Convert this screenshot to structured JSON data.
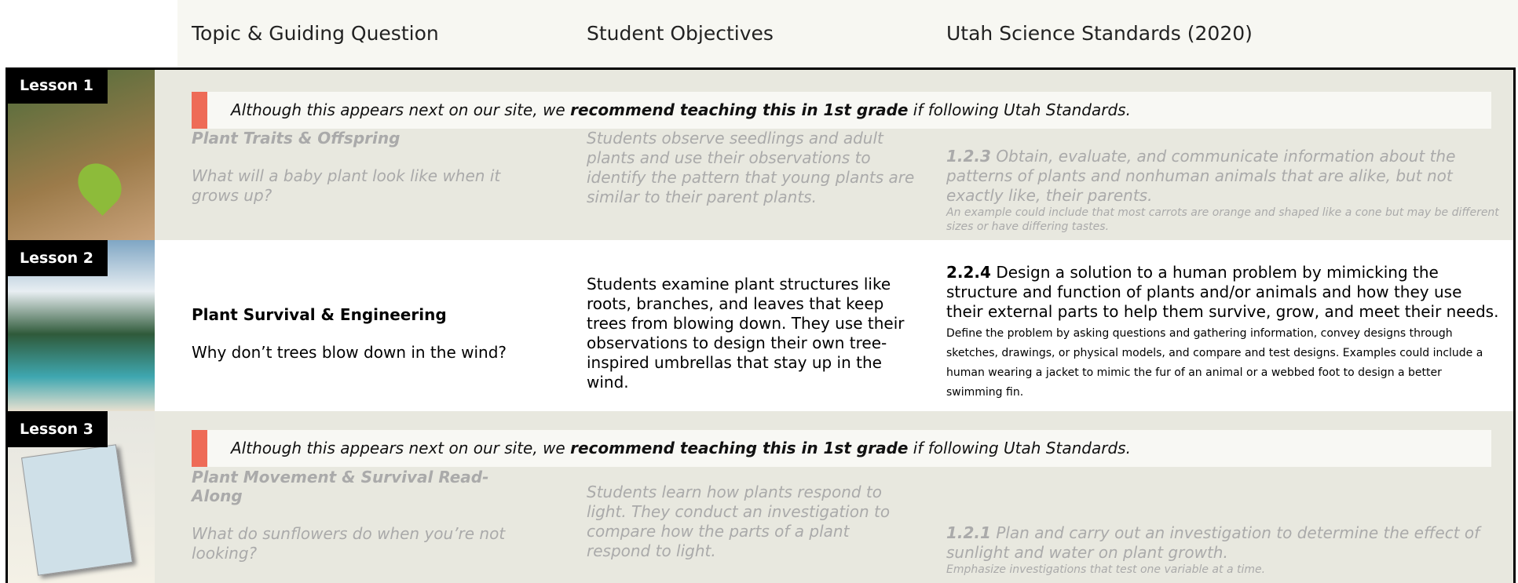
{
  "header": {
    "columns": [
      "Topic & Guiding Question",
      "Student Objectives",
      "Utah Science Standards (2020)"
    ]
  },
  "lessons": [
    {
      "label": "Lesson 1",
      "note": {
        "pre": "Although this appears next on our site, we ",
        "bold": "recommend teaching this in 1st grade",
        "post": " if following Utah Standards."
      },
      "topic": "Plant Traits & Offspring",
      "question": "What will a baby plant look like when it grows up?",
      "objective": "Students observe seedlings and adult plants and use their observations to identify the pattern that young plants are similar to their parent plants.",
      "standard": {
        "code": "1.2.3",
        "text": "Obtain, evaluate, and communicate information about the patterns of plants and nonhuman animals that are alike, but not exactly like, their parents.",
        "detail": "An example could include that most carrots are orange and shaped like a cone but may be different sizes or have differing tastes."
      }
    },
    {
      "label": "Lesson 2",
      "topic": "Plant Survival & Engineering",
      "question": "Why don’t trees blow down in the wind?",
      "objective": "Students examine plant structures like roots, branches, and leaves that keep trees from blowing down. They use their observations to design their own tree-inspired umbrellas that stay up in the wind.",
      "standard": {
        "code": "2.2.4",
        "text": "Design a solution to a human problem by mimicking the structure and function of plants and/or animals and how they use their external parts to help them survive, grow, and meet their needs.",
        "detail": "Define the problem by asking questions and gathering information, convey designs through sketches, drawings, or physical models, and compare and test designs. Examples could include a human wearing a jacket to mimic the fur of an animal or a webbed foot to design a better swimming fin."
      }
    },
    {
      "label": "Lesson 3",
      "note": {
        "pre": "Although this appears next on our site, we ",
        "bold": "recommend teaching this in 1st grade",
        "post": " if following Utah Standards."
      },
      "topic": "Plant Movement & Survival Read-Along",
      "question": "What do sunflowers do when you’re not looking?",
      "objective": "Students learn how plants respond to light. They conduct an investigation to compare how the parts of a plant respond to light.",
      "standard": {
        "code": "1.2.1",
        "text": "Plan and carry out an investigation to determine the effect of sunlight and water on plant growth.",
        "detail": "Emphasize investigations that test one variable at a time."
      }
    }
  ]
}
